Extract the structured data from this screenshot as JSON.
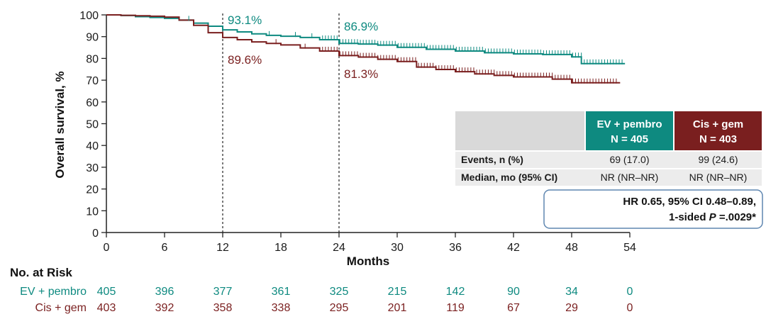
{
  "chart_data": {
    "type": "line",
    "subtype": "kaplan-meier",
    "xlabel": "Months",
    "ylabel": "Overall survival, %",
    "xlim": [
      0,
      54
    ],
    "ylim": [
      0,
      100
    ],
    "x_ticks": [
      0,
      6,
      12,
      18,
      24,
      30,
      36,
      42,
      48,
      54
    ],
    "y_ticks": [
      0,
      10,
      20,
      30,
      40,
      50,
      60,
      70,
      80,
      90,
      100
    ],
    "reference_lines_x": [
      12,
      24
    ],
    "series": [
      {
        "name": "EV + pembro",
        "color": "#0e8a80",
        "points": [
          [
            0,
            100
          ],
          [
            1.5,
            99.7
          ],
          [
            3,
            99.2
          ],
          [
            4.5,
            98.8
          ],
          [
            6,
            98.4
          ],
          [
            7.5,
            97.6
          ],
          [
            9,
            96.2
          ],
          [
            10.5,
            94.8
          ],
          [
            12,
            93.1
          ],
          [
            13.5,
            92.2
          ],
          [
            15,
            91.3
          ],
          [
            16.5,
            90.6
          ],
          [
            18,
            90.2
          ],
          [
            20,
            89.6
          ],
          [
            22,
            88.6
          ],
          [
            24,
            86.9
          ],
          [
            26,
            86.6
          ],
          [
            28,
            86.1
          ],
          [
            30,
            85.1
          ],
          [
            33,
            84.2
          ],
          [
            36,
            83.4
          ],
          [
            39,
            82.6
          ],
          [
            42,
            82.1
          ],
          [
            45,
            81.8
          ],
          [
            48,
            80.7
          ],
          [
            49,
            77.6
          ],
          [
            51,
            77.6
          ],
          [
            53.5,
            77.6
          ]
        ]
      },
      {
        "name": "Cis + gem",
        "color": "#7a1f1f",
        "points": [
          [
            0,
            100
          ],
          [
            1.5,
            99.8
          ],
          [
            3,
            99.6
          ],
          [
            4.5,
            99.4
          ],
          [
            6,
            99.0
          ],
          [
            7.5,
            97.6
          ],
          [
            9,
            95.2
          ],
          [
            10.5,
            91.8
          ],
          [
            12,
            89.6
          ],
          [
            13.5,
            88.6
          ],
          [
            15,
            87.6
          ],
          [
            16.5,
            86.9
          ],
          [
            18,
            86.2
          ],
          [
            20,
            84.8
          ],
          [
            22,
            83.4
          ],
          [
            24,
            81.3
          ],
          [
            26,
            80.6
          ],
          [
            28,
            79.6
          ],
          [
            30,
            78.6
          ],
          [
            32,
            76.0
          ],
          [
            34,
            74.9
          ],
          [
            36,
            73.9
          ],
          [
            38,
            72.9
          ],
          [
            40,
            72.2
          ],
          [
            42,
            71.5
          ],
          [
            44,
            71.5
          ],
          [
            46,
            70.5
          ],
          [
            48,
            68.8
          ],
          [
            50,
            68.8
          ],
          [
            53,
            68.8
          ]
        ]
      }
    ],
    "censor_ranges": [
      {
        "series": "EV + pembro",
        "from": 22.3,
        "to": 53.4,
        "step": 0.3
      },
      {
        "series": "Cis + gem",
        "from": 22.3,
        "to": 52.8,
        "step": 0.3
      }
    ],
    "annotations": [
      {
        "text": "93.1%",
        "x": 12,
        "y": 93.1,
        "series": "EV + pembro"
      },
      {
        "text": "89.6%",
        "x": 12,
        "y": 89.6,
        "series": "Cis + gem"
      },
      {
        "text": "86.9%",
        "x": 24,
        "y": 86.9,
        "series": "EV + pembro"
      },
      {
        "text": "81.3%",
        "x": 24,
        "y": 81.3,
        "series": "Cis + gem"
      }
    ],
    "table": {
      "headers": [
        {
          "line1": "EV + pembro",
          "line2": "N = 405",
          "color": "#0e8a80"
        },
        {
          "line1": "Cis + gem",
          "line2": "N = 403",
          "color": "#7a1f1f"
        }
      ],
      "rows": [
        {
          "label": "Events, n (%)",
          "values": [
            "69 (17.0)",
            "99 (24.6)"
          ]
        },
        {
          "label": "Median, mo (95% CI)",
          "values": [
            "NR (NR–NR)",
            "NR (NR–NR)"
          ]
        }
      ]
    },
    "hr_box": {
      "line1": "HR 0.65, 95% CI 0.48–0.89,",
      "line2_prefix": "1-sided ",
      "line2_italic": "P",
      "line2_suffix": " =.0029*"
    },
    "risk_table": {
      "title": "No. at Risk",
      "rows": [
        {
          "label": "EV + pembro",
          "color": "#0e8a80",
          "values": [
            "405",
            "396",
            "377",
            "361",
            "325",
            "215",
            "142",
            "90",
            "34",
            "0"
          ]
        },
        {
          "label": "Cis + gem",
          "color": "#7a1f1f",
          "values": [
            "403",
            "392",
            "358",
            "338",
            "295",
            "201",
            "119",
            "67",
            "29",
            "0"
          ]
        }
      ]
    }
  }
}
